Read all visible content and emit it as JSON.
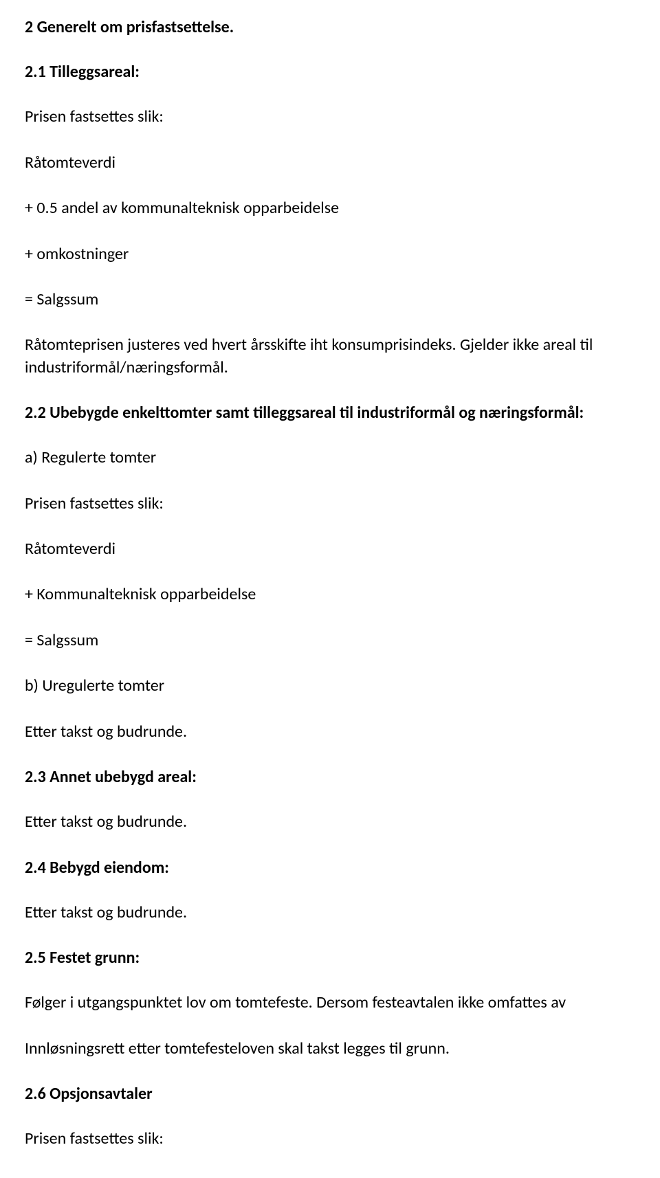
{
  "doc": {
    "text_color": "#000000",
    "background_color": "#ffffff",
    "font_family": "Calibri",
    "heading_fontsize": 24,
    "body_fontsize": 24,
    "heading_weight": 700,
    "body_weight": 400
  },
  "s2": {
    "title": "2 Generelt om prisfastsettelse.",
    "s2_1": {
      "title": "2.1 Tilleggsareal:",
      "lines": {
        "l1": "Prisen fastsettes slik:",
        "l2": "Råtomteverdi",
        "l3": "+ 0.5 andel av kommunalteknisk opparbeidelse",
        "l4": "+ omkostninger",
        "l5": "= Salgssum",
        "l6": "Råtomteprisen justeres ved hvert årsskifte iht konsumprisindeks. Gjelder ikke areal til industriformål/næringsformål."
      }
    },
    "s2_2": {
      "title": "2.2 Ubebygde enkelttomter samt tilleggsareal til industriformål og næringsformål:",
      "lines": {
        "l1": "a) Regulerte tomter",
        "l2": "Prisen fastsettes slik:",
        "l3": "Råtomteverdi",
        "l4": "+ Kommunalteknisk opparbeidelse",
        "l5": "= Salgssum",
        "l6": "b) Uregulerte tomter",
        "l7": "Etter takst og budrunde."
      }
    },
    "s2_3": {
      "title": "2.3 Annet ubebygd areal:",
      "lines": {
        "l1": "Etter takst og budrunde."
      }
    },
    "s2_4": {
      "title": "2.4 Bebygd eiendom:",
      "lines": {
        "l1": "Etter takst og budrunde."
      }
    },
    "s2_5": {
      "title": "2.5 Festet grunn:",
      "lines": {
        "l1": "Følger i utgangspunktet lov om tomtefeste. Dersom festeavtalen ikke omfattes av",
        "l2": "Innløsningsrett etter tomtefesteloven skal takst legges til grunn."
      }
    },
    "s2_6": {
      "title": "2.6 Opsjonsavtaler",
      "lines": {
        "l1": "Prisen fastsettes slik:"
      }
    }
  }
}
